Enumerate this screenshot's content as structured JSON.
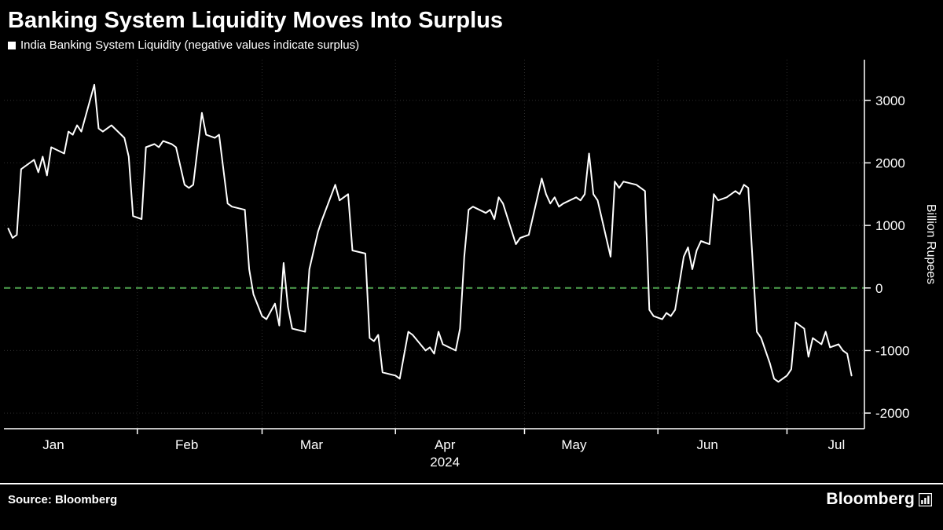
{
  "header": {
    "title": "Banking System Liquidity Moves Into Surplus",
    "legend_label": "India Banking System Liquidity (negative values indicate surplus)"
  },
  "footer": {
    "source": "Source: Bloomberg",
    "brand": "Bloomberg"
  },
  "colors": {
    "background": "#000000",
    "text": "#ffffff",
    "grid": "#2e2e2e",
    "series": "#ffffff",
    "axis": "#ffffff"
  },
  "chart_data": {
    "type": "line",
    "title": "Banking System Liquidity Moves Into Surplus",
    "subtitle": "India Banking System Liquidity (negative values indicate surplus)",
    "xlabel": "",
    "ylabel": "Billion Rupees",
    "y_ticks": [
      3000,
      2000,
      1000,
      0,
      -1000,
      -2000
    ],
    "ylim": [
      -2250,
      3650
    ],
    "xlim_days": [
      1,
      201
    ],
    "x_unit": "day_of_year_2024",
    "grid": "dotted",
    "legend_position": "top-left",
    "year_label": "2024",
    "year_under_month": "Apr",
    "months": [
      {
        "label": "Jan",
        "start_day": 1
      },
      {
        "label": "Feb",
        "start_day": 32
      },
      {
        "label": "Mar",
        "start_day": 61
      },
      {
        "label": "Apr",
        "start_day": 92
      },
      {
        "label": "May",
        "start_day": 122
      },
      {
        "label": "Jun",
        "start_day": 153
      },
      {
        "label": "Jul",
        "start_day": 183
      }
    ],
    "zero_line": {
      "value": 0,
      "color": "#4fa34f",
      "style": "dashed"
    },
    "series": [
      {
        "name": "India Banking System Liquidity",
        "color": "#ffffff",
        "points": [
          [
            2,
            950
          ],
          [
            3,
            800
          ],
          [
            4,
            850
          ],
          [
            5,
            1900
          ],
          [
            8,
            2050
          ],
          [
            9,
            1850
          ],
          [
            10,
            2100
          ],
          [
            11,
            1800
          ],
          [
            12,
            2250
          ],
          [
            15,
            2150
          ],
          [
            16,
            2500
          ],
          [
            17,
            2450
          ],
          [
            18,
            2600
          ],
          [
            19,
            2500
          ],
          [
            22,
            3250
          ],
          [
            23,
            2550
          ],
          [
            24,
            2500
          ],
          [
            25,
            2550
          ],
          [
            26,
            2600
          ],
          [
            29,
            2400
          ],
          [
            30,
            2100
          ],
          [
            31,
            1150
          ],
          [
            33,
            1100
          ],
          [
            34,
            2250
          ],
          [
            36,
            2300
          ],
          [
            37,
            2250
          ],
          [
            38,
            2350
          ],
          [
            40,
            2300
          ],
          [
            41,
            2250
          ],
          [
            43,
            1650
          ],
          [
            44,
            1600
          ],
          [
            45,
            1650
          ],
          [
            47,
            2800
          ],
          [
            48,
            2450
          ],
          [
            50,
            2400
          ],
          [
            51,
            2450
          ],
          [
            53,
            1350
          ],
          [
            54,
            1300
          ],
          [
            57,
            1250
          ],
          [
            58,
            300
          ],
          [
            59,
            -100
          ],
          [
            61,
            -450
          ],
          [
            62,
            -500
          ],
          [
            64,
            -250
          ],
          [
            65,
            -600
          ],
          [
            66,
            400
          ],
          [
            67,
            -300
          ],
          [
            68,
            -650
          ],
          [
            71,
            -700
          ],
          [
            72,
            300
          ],
          [
            74,
            900
          ],
          [
            75,
            1100
          ],
          [
            78,
            1650
          ],
          [
            79,
            1400
          ],
          [
            80,
            1450
          ],
          [
            81,
            1500
          ],
          [
            82,
            600
          ],
          [
            85,
            550
          ],
          [
            86,
            -800
          ],
          [
            87,
            -850
          ],
          [
            88,
            -750
          ],
          [
            89,
            -1350
          ],
          [
            92,
            -1400
          ],
          [
            93,
            -1450
          ],
          [
            95,
            -700
          ],
          [
            96,
            -750
          ],
          [
            99,
            -1000
          ],
          [
            100,
            -950
          ],
          [
            101,
            -1050
          ],
          [
            102,
            -700
          ],
          [
            103,
            -900
          ],
          [
            106,
            -1000
          ],
          [
            107,
            -650
          ],
          [
            108,
            500
          ],
          [
            109,
            1250
          ],
          [
            110,
            1300
          ],
          [
            113,
            1200
          ],
          [
            114,
            1250
          ],
          [
            115,
            1100
          ],
          [
            116,
            1450
          ],
          [
            117,
            1350
          ],
          [
            120,
            700
          ],
          [
            121,
            800
          ],
          [
            123,
            850
          ],
          [
            126,
            1750
          ],
          [
            127,
            1500
          ],
          [
            128,
            1350
          ],
          [
            129,
            1450
          ],
          [
            130,
            1300
          ],
          [
            131,
            1350
          ],
          [
            134,
            1450
          ],
          [
            135,
            1400
          ],
          [
            136,
            1500
          ],
          [
            137,
            2150
          ],
          [
            138,
            1500
          ],
          [
            139,
            1400
          ],
          [
            142,
            500
          ],
          [
            143,
            1700
          ],
          [
            144,
            1600
          ],
          [
            145,
            1700
          ],
          [
            148,
            1650
          ],
          [
            149,
            1600
          ],
          [
            150,
            1550
          ],
          [
            151,
            -350
          ],
          [
            152,
            -450
          ],
          [
            154,
            -500
          ],
          [
            155,
            -400
          ],
          [
            156,
            -450
          ],
          [
            157,
            -350
          ],
          [
            159,
            500
          ],
          [
            160,
            650
          ],
          [
            161,
            300
          ],
          [
            162,
            600
          ],
          [
            163,
            750
          ],
          [
            165,
            700
          ],
          [
            166,
            1500
          ],
          [
            167,
            1400
          ],
          [
            169,
            1450
          ],
          [
            170,
            1500
          ],
          [
            171,
            1550
          ],
          [
            172,
            1500
          ],
          [
            173,
            1650
          ],
          [
            174,
            1600
          ],
          [
            176,
            -700
          ],
          [
            177,
            -800
          ],
          [
            179,
            -1200
          ],
          [
            180,
            -1450
          ],
          [
            181,
            -1500
          ],
          [
            183,
            -1400
          ],
          [
            184,
            -1300
          ],
          [
            185,
            -550
          ],
          [
            187,
            -650
          ],
          [
            188,
            -1100
          ],
          [
            189,
            -800
          ],
          [
            191,
            -900
          ],
          [
            192,
            -700
          ],
          [
            193,
            -950
          ],
          [
            195,
            -900
          ],
          [
            196,
            -1000
          ],
          [
            197,
            -1050
          ],
          [
            198,
            -1400
          ]
        ]
      }
    ]
  }
}
